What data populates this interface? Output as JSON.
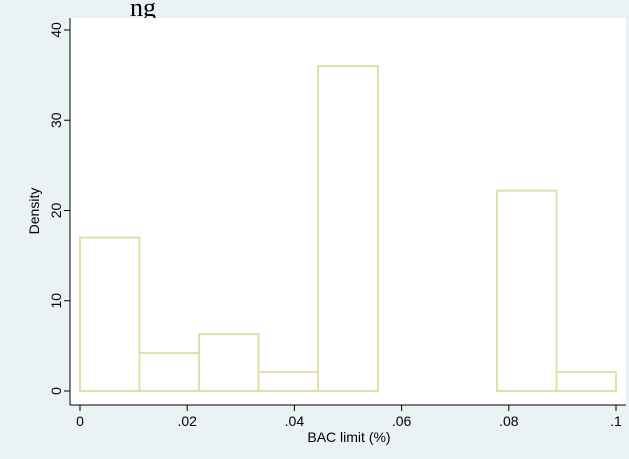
{
  "chart_data": {
    "type": "bar",
    "title": "",
    "xlabel": "BAC limit (%)",
    "ylabel": "Density",
    "xlim": [
      0,
      0.1
    ],
    "ylim": [
      0,
      40
    ],
    "x_ticks": [
      {
        "value": 0,
        "label": "0"
      },
      {
        "value": 0.02,
        "label": ".02"
      },
      {
        "value": 0.04,
        "label": ".04"
      },
      {
        "value": 0.06,
        "label": ".06"
      },
      {
        "value": 0.08,
        "label": ".08"
      },
      {
        "value": 0.1,
        "label": ".1"
      }
    ],
    "y_ticks": [
      {
        "value": 0,
        "label": "0"
      },
      {
        "value": 10,
        "label": "10"
      },
      {
        "value": 20,
        "label": "20"
      },
      {
        "value": 30,
        "label": "30"
      },
      {
        "value": 40,
        "label": "40"
      }
    ],
    "bins": [
      {
        "x0": 0.0,
        "x1": 0.0111,
        "value": 17.0
      },
      {
        "x0": 0.0111,
        "x1": 0.0222,
        "value": 4.2
      },
      {
        "x0": 0.0222,
        "x1": 0.0333,
        "value": 6.3
      },
      {
        "x0": 0.0333,
        "x1": 0.0444,
        "value": 2.1
      },
      {
        "x0": 0.0444,
        "x1": 0.0556,
        "value": 36.0
      },
      {
        "x0": 0.0778,
        "x1": 0.0889,
        "value": 22.2
      },
      {
        "x0": 0.0889,
        "x1": 0.1,
        "value": 2.1
      }
    ],
    "bar_color": "#e4dfa8",
    "grid": false,
    "legend": "none"
  }
}
